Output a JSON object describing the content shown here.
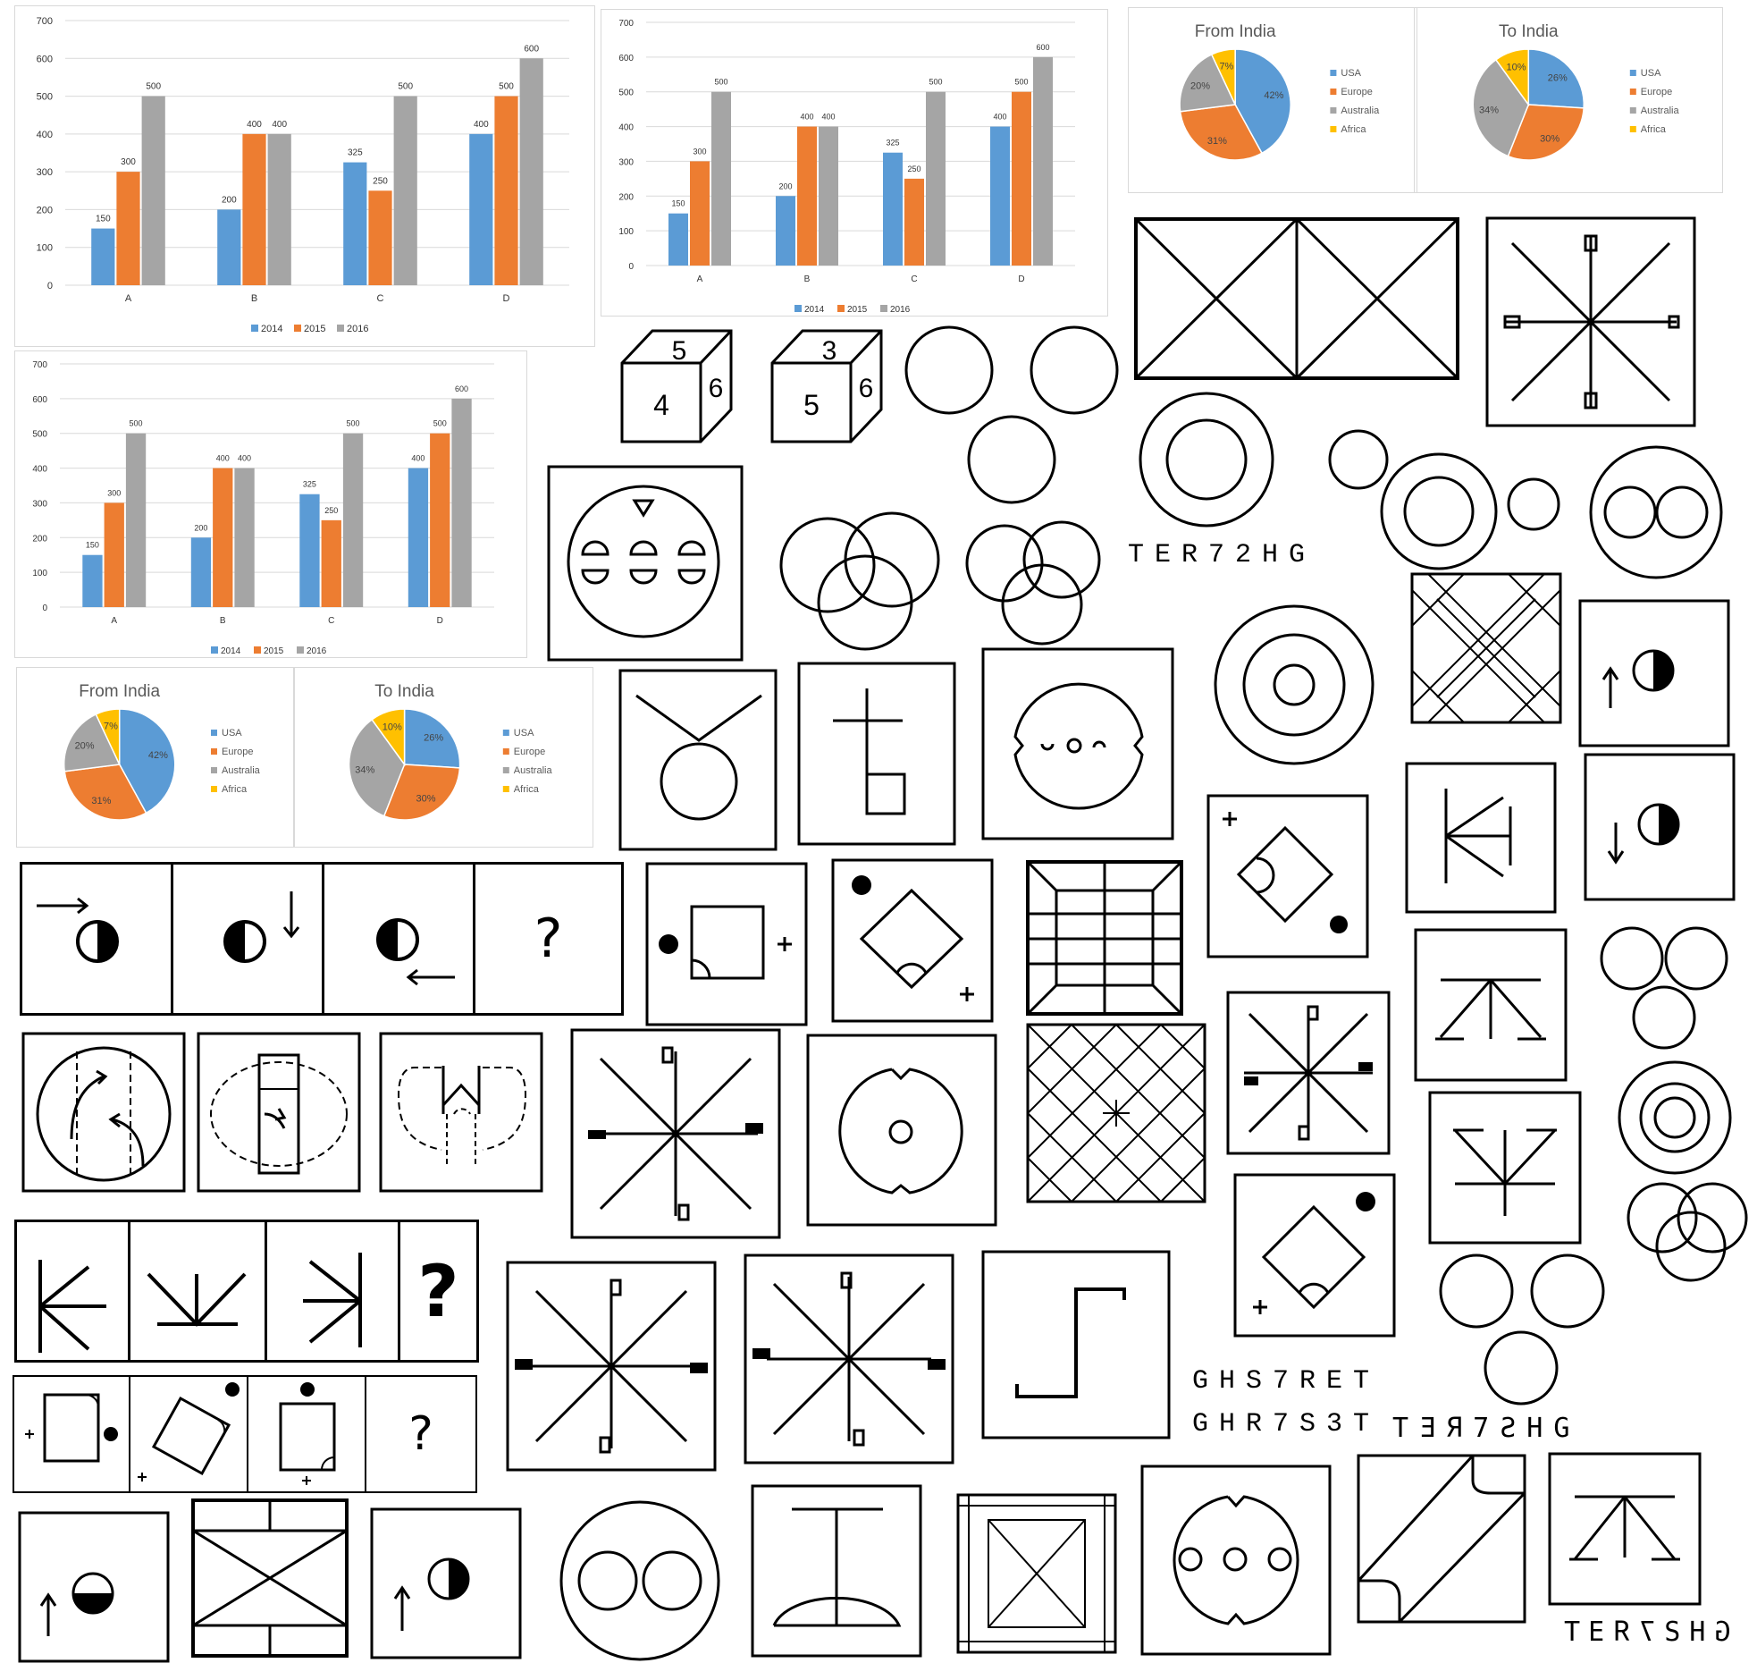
{
  "charts": [
    {
      "type": "bar",
      "categories": [
        "A",
        "B",
        "C",
        "D"
      ],
      "series": [
        {
          "name": "2014",
          "values": [
            150,
            200,
            325,
            400
          ],
          "color": "#5b9bd5"
        },
        {
          "name": "2015",
          "values": [
            300,
            400,
            250,
            500
          ],
          "color": "#ed7d31"
        },
        {
          "name": "2016",
          "values": [
            500,
            400,
            500,
            600
          ],
          "color": "#a5a5a5"
        }
      ],
      "y_ticks": [
        "0",
        "100",
        "200",
        "300",
        "400",
        "500",
        "600",
        "700"
      ],
      "ylim": [
        0,
        700
      ],
      "legend_position": "bottom"
    }
  ],
  "pies": [
    {
      "title": "From India",
      "slices": [
        {
          "name": "USA",
          "value": 42,
          "label": "42%",
          "color": "#5b9bd5"
        },
        {
          "name": "Europe",
          "value": 31,
          "label": "31%",
          "color": "#ed7d31"
        },
        {
          "name": "Australia",
          "value": 20,
          "label": "20%",
          "color": "#a5a5a5"
        },
        {
          "name": "Africa",
          "value": 7,
          "label": "7%",
          "color": "#ffc000"
        }
      ]
    },
    {
      "title": "To India",
      "slices": [
        {
          "name": "USA",
          "value": 26,
          "label": "26%",
          "color": "#5b9bd5"
        },
        {
          "name": "Europe",
          "value": 30,
          "label": "30%",
          "color": "#ed7d31"
        },
        {
          "name": "Australia",
          "value": 34,
          "label": "34%",
          "color": "#a5a5a5"
        },
        {
          "name": "Africa",
          "value": 10,
          "label": "10%",
          "color": "#ffc000"
        }
      ]
    }
  ],
  "dice": [
    {
      "top": "5",
      "front": "4",
      "side": "6"
    },
    {
      "top": "3",
      "front": "5",
      "side": "6"
    }
  ],
  "texts": {
    "code_forward": "TER72HG",
    "code_mirror_a": "GHS7RET",
    "code_mirror_b": "GHR7S3T",
    "code_mirror_c": "TƎЯ7ƧHG",
    "code_mirror_d": "GHƧ7ЯƎT",
    "question": "?"
  }
}
